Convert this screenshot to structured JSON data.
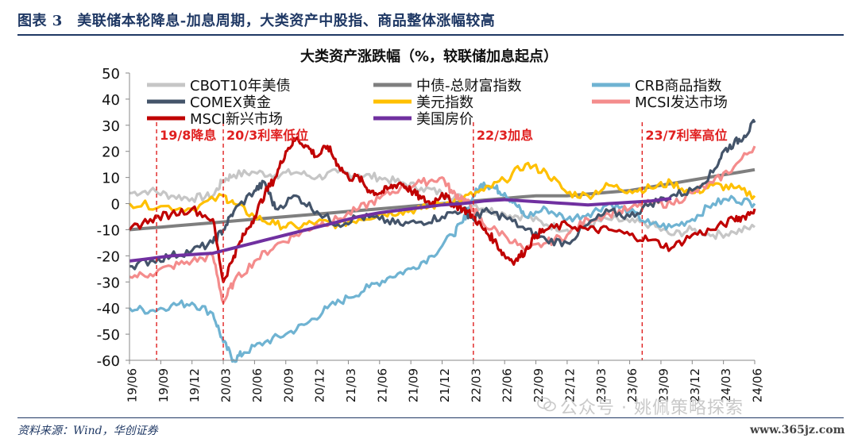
{
  "figure": {
    "title": "图表 3　美联储本轮降息-加息周期，大类资产中股指、商品整体涨幅较高",
    "source": "资料来源：Wind，华创证券",
    "watermark": "公众号 · 姚佩策略探索",
    "site": "www.365jz.com"
  },
  "chart_data": {
    "type": "line",
    "title": "大类资产涨跌幅（%，较联储加息起点）",
    "ylim": [
      -60,
      50
    ],
    "yticks": [
      50,
      40,
      30,
      20,
      10,
      0,
      -10,
      -20,
      -30,
      -40,
      -50,
      -60
    ],
    "xticks": [
      "19/06",
      "19/09",
      "19/12",
      "20/03",
      "20/06",
      "20/09",
      "20/12",
      "21/03",
      "21/06",
      "21/09",
      "21/12",
      "22/03",
      "22/06",
      "22/09",
      "22/12",
      "23/03",
      "23/06",
      "23/09",
      "23/12",
      "24/03",
      "24/06"
    ],
    "legend_position": "top",
    "annotations": [
      {
        "label": "19/8降息",
        "x": 2.6
      },
      {
        "label": "20/3利率低位",
        "x": 9.0
      },
      {
        "label": "22/3加息",
        "x": 33.0
      },
      {
        "label": "23/7利率高位",
        "x": 49.2
      }
    ],
    "series": [
      {
        "name": "CBOT10年美债",
        "color": "#c6c6c6",
        "points": [
          [
            0,
            4
          ],
          [
            2,
            5
          ],
          [
            4,
            3
          ],
          [
            6,
            2
          ],
          [
            8,
            3
          ],
          [
            9,
            9
          ],
          [
            10,
            11
          ],
          [
            12,
            12
          ],
          [
            14,
            11
          ],
          [
            16,
            12
          ],
          [
            18,
            10
          ],
          [
            20,
            12
          ],
          [
            22,
            11
          ],
          [
            24,
            10
          ],
          [
            26,
            8
          ],
          [
            28,
            6
          ],
          [
            30,
            4
          ],
          [
            32,
            2
          ],
          [
            34,
            -2
          ],
          [
            36,
            -4
          ],
          [
            38,
            -5
          ],
          [
            40,
            -8
          ],
          [
            42,
            -10
          ],
          [
            44,
            -8
          ],
          [
            46,
            -6
          ],
          [
            48,
            -7
          ],
          [
            50,
            -8
          ],
          [
            52,
            -12
          ],
          [
            54,
            -10
          ],
          [
            56,
            -12
          ],
          [
            58,
            -11
          ],
          [
            60,
            -9
          ]
        ]
      },
      {
        "name": "中债-总财富指数",
        "color": "#7f7f7f",
        "points": [
          [
            0,
            -10
          ],
          [
            3,
            -9
          ],
          [
            6,
            -8
          ],
          [
            9,
            -7
          ],
          [
            12,
            -6
          ],
          [
            15,
            -5
          ],
          [
            18,
            -4
          ],
          [
            21,
            -3
          ],
          [
            24,
            -2
          ],
          [
            27,
            -1
          ],
          [
            30,
            0
          ],
          [
            33,
            1
          ],
          [
            36,
            2
          ],
          [
            39,
            3
          ],
          [
            42,
            3
          ],
          [
            45,
            4
          ],
          [
            48,
            5
          ],
          [
            51,
            7
          ],
          [
            54,
            9
          ],
          [
            57,
            11
          ],
          [
            60,
            13
          ]
        ]
      },
      {
        "name": "CRB商品指数",
        "color": "#6fb3d2",
        "points": [
          [
            0,
            -40
          ],
          [
            2,
            -41
          ],
          [
            4,
            -39
          ],
          [
            6,
            -38
          ],
          [
            8,
            -42
          ],
          [
            9,
            -53
          ],
          [
            10,
            -60
          ],
          [
            11,
            -57
          ],
          [
            13,
            -53
          ],
          [
            15,
            -50
          ],
          [
            17,
            -46
          ],
          [
            19,
            -40
          ],
          [
            21,
            -36
          ],
          [
            23,
            -32
          ],
          [
            25,
            -28
          ],
          [
            27,
            -25
          ],
          [
            29,
            -20
          ],
          [
            31,
            -12
          ],
          [
            32,
            -7
          ],
          [
            33,
            3
          ],
          [
            34,
            8
          ],
          [
            35,
            6
          ],
          [
            36,
            4
          ],
          [
            37,
            0
          ],
          [
            38,
            -5
          ],
          [
            40,
            -2
          ],
          [
            42,
            -6
          ],
          [
            44,
            -4
          ],
          [
            46,
            0
          ],
          [
            48,
            -3
          ],
          [
            50,
            -8
          ],
          [
            52,
            -9
          ],
          [
            54,
            -6
          ],
          [
            56,
            0
          ],
          [
            58,
            2
          ],
          [
            60,
            0
          ]
        ]
      },
      {
        "name": "COMEX黄金",
        "color": "#44546a",
        "points": [
          [
            0,
            -24
          ],
          [
            2,
            -22
          ],
          [
            4,
            -20
          ],
          [
            6,
            -18
          ],
          [
            8,
            -15
          ],
          [
            9,
            -10
          ],
          [
            10,
            -3
          ],
          [
            12,
            5
          ],
          [
            13,
            8
          ],
          [
            14,
            -2
          ],
          [
            16,
            3
          ],
          [
            18,
            -3
          ],
          [
            20,
            -8
          ],
          [
            22,
            -5
          ],
          [
            24,
            -6
          ],
          [
            26,
            -8
          ],
          [
            28,
            -7
          ],
          [
            30,
            -5
          ],
          [
            32,
            -2
          ],
          [
            33,
            -6
          ],
          [
            34,
            -3
          ],
          [
            36,
            -5
          ],
          [
            38,
            -10
          ],
          [
            40,
            -14
          ],
          [
            42,
            -15
          ],
          [
            44,
            -8
          ],
          [
            46,
            -3
          ],
          [
            48,
            -5
          ],
          [
            50,
            0
          ],
          [
            52,
            3
          ],
          [
            54,
            5
          ],
          [
            56,
            12
          ],
          [
            57,
            20
          ],
          [
            58,
            23
          ],
          [
            59,
            26
          ],
          [
            60,
            31
          ]
        ]
      },
      {
        "name": "美元指数",
        "color": "#ffc000",
        "points": [
          [
            0,
            0
          ],
          [
            3,
            -1
          ],
          [
            6,
            -2
          ],
          [
            9,
            3
          ],
          [
            10,
            0
          ],
          [
            12,
            -5
          ],
          [
            14,
            -8
          ],
          [
            16,
            -9
          ],
          [
            18,
            -7
          ],
          [
            20,
            -8
          ],
          [
            22,
            -6
          ],
          [
            24,
            -4
          ],
          [
            26,
            -3
          ],
          [
            28,
            -2
          ],
          [
            30,
            0
          ],
          [
            32,
            2
          ],
          [
            34,
            5
          ],
          [
            36,
            9
          ],
          [
            38,
            15
          ],
          [
            40,
            12
          ],
          [
            42,
            4
          ],
          [
            44,
            3
          ],
          [
            46,
            7
          ],
          [
            48,
            5
          ],
          [
            50,
            6
          ],
          [
            52,
            8
          ],
          [
            54,
            4
          ],
          [
            56,
            7
          ],
          [
            58,
            6
          ],
          [
            60,
            3
          ]
        ]
      },
      {
        "name": "MCSI发达市场",
        "color": "#f48c8c",
        "points": [
          [
            0,
            -28
          ],
          [
            2,
            -27
          ],
          [
            4,
            -24
          ],
          [
            6,
            -22
          ],
          [
            8,
            -20
          ],
          [
            9,
            -38
          ],
          [
            10,
            -30
          ],
          [
            12,
            -22
          ],
          [
            14,
            -16
          ],
          [
            16,
            -12
          ],
          [
            18,
            -8
          ],
          [
            20,
            -6
          ],
          [
            22,
            -2
          ],
          [
            24,
            2
          ],
          [
            26,
            6
          ],
          [
            28,
            8
          ],
          [
            30,
            10
          ],
          [
            31,
            4
          ],
          [
            32,
            2
          ],
          [
            33,
            -2
          ],
          [
            34,
            -8
          ],
          [
            36,
            -12
          ],
          [
            38,
            -18
          ],
          [
            40,
            -15
          ],
          [
            42,
            -12
          ],
          [
            44,
            -6
          ],
          [
            46,
            -4
          ],
          [
            48,
            -2
          ],
          [
            50,
            0
          ],
          [
            52,
            0
          ],
          [
            54,
            4
          ],
          [
            56,
            8
          ],
          [
            58,
            14
          ],
          [
            60,
            22
          ]
        ]
      },
      {
        "name": "MSCI新兴市场",
        "color": "#c00000",
        "points": [
          [
            0,
            -10
          ],
          [
            2,
            -6
          ],
          [
            4,
            -4
          ],
          [
            6,
            -2
          ],
          [
            8,
            -6
          ],
          [
            9,
            -30
          ],
          [
            10,
            -20
          ],
          [
            11,
            -12
          ],
          [
            12,
            -5
          ],
          [
            13,
            4
          ],
          [
            14,
            10
          ],
          [
            15,
            20
          ],
          [
            16,
            25
          ],
          [
            17,
            22
          ],
          [
            18,
            18
          ],
          [
            19,
            22
          ],
          [
            20,
            15
          ],
          [
            21,
            10
          ],
          [
            22,
            10
          ],
          [
            23,
            5
          ],
          [
            24,
            4
          ],
          [
            25,
            6
          ],
          [
            26,
            8
          ],
          [
            27,
            5
          ],
          [
            28,
            2
          ],
          [
            29,
            0
          ],
          [
            30,
            4
          ],
          [
            31,
            0
          ],
          [
            32,
            -2
          ],
          [
            33,
            -5
          ],
          [
            34,
            -10
          ],
          [
            35,
            -14
          ],
          [
            36,
            -20
          ],
          [
            37,
            -22
          ],
          [
            38,
            -18
          ],
          [
            39,
            -12
          ],
          [
            40,
            -10
          ],
          [
            42,
            -8
          ],
          [
            44,
            -10
          ],
          [
            46,
            -10
          ],
          [
            48,
            -12
          ],
          [
            50,
            -14
          ],
          [
            52,
            -17
          ],
          [
            54,
            -12
          ],
          [
            56,
            -10
          ],
          [
            58,
            -6
          ],
          [
            59,
            -5
          ],
          [
            60,
            -2
          ]
        ]
      },
      {
        "name": "美国房价",
        "color": "#7030a0",
        "points": [
          [
            0,
            -22
          ],
          [
            2,
            -21
          ],
          [
            4,
            -20
          ],
          [
            6,
            -19.5
          ],
          [
            8,
            -19
          ],
          [
            10,
            -17
          ],
          [
            12,
            -15
          ],
          [
            14,
            -13
          ],
          [
            16,
            -11
          ],
          [
            18,
            -9
          ],
          [
            20,
            -7
          ],
          [
            22,
            -5
          ],
          [
            24,
            -3.5
          ],
          [
            26,
            -2.5
          ],
          [
            28,
            -1.5
          ],
          [
            30,
            -0.5
          ],
          [
            32,
            0
          ],
          [
            34,
            1
          ],
          [
            36,
            1.5
          ],
          [
            38,
            1
          ],
          [
            40,
            0.5
          ],
          [
            42,
            0
          ],
          [
            44,
            -0.5
          ],
          [
            46,
            0
          ],
          [
            48,
            0.5
          ],
          [
            50,
            1
          ],
          [
            52,
            2
          ]
        ]
      }
    ]
  }
}
